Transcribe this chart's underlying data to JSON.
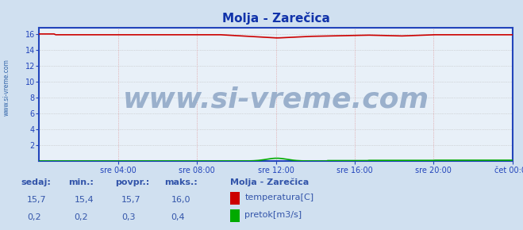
{
  "title": "Molja - Zarečica",
  "bg_color": "#d0e0f0",
  "plot_bg_color": "#e8f0f8",
  "grid_color_h": "#bbbbbb",
  "grid_color_v": "#dd8888",
  "ylabel_color": "#3355aa",
  "xlabel_color": "#3355aa",
  "title_color": "#1133aa",
  "watermark": "www.si-vreme.com",
  "ylim": [
    0,
    16.8
  ],
  "yticks": [
    2,
    4,
    6,
    8,
    10,
    12,
    14,
    16
  ],
  "ytick_labels": [
    "2",
    "4",
    "6",
    "8",
    "10",
    "12",
    "14",
    "16"
  ],
  "n_points": 288,
  "temp_color": "#cc0000",
  "flow_color": "#00aa00",
  "axis_color": "#2244bb",
  "border_color": "#2244bb",
  "xtick_positions": [
    0.1667,
    0.3333,
    0.5,
    0.6667,
    0.8333,
    1.0
  ],
  "xtick_labels": [
    "sre 04:00",
    "sre 08:00",
    "sre 12:00",
    "sre 16:00",
    "sre 20:00",
    "čet 00:00"
  ],
  "legend_title": "Molja - Zarečica",
  "legend_temp_label": "temperatura[C]",
  "legend_flow_label": "pretok[m3/s]",
  "stats_headers": [
    "sedaj:",
    "min.:",
    "povpr.:",
    "maks.:"
  ],
  "stats_temp": [
    "15,7",
    "15,4",
    "15,7",
    "16,0"
  ],
  "stats_flow": [
    "0,2",
    "0,2",
    "0,3",
    "0,4"
  ],
  "stats_color": "#3355aa",
  "watermark_color": "#9ab0cc",
  "watermark_fontsize": 26,
  "left_label_color": "#3366aa",
  "flow_axis_max": 0.4,
  "temp_axis_max": 16.0
}
